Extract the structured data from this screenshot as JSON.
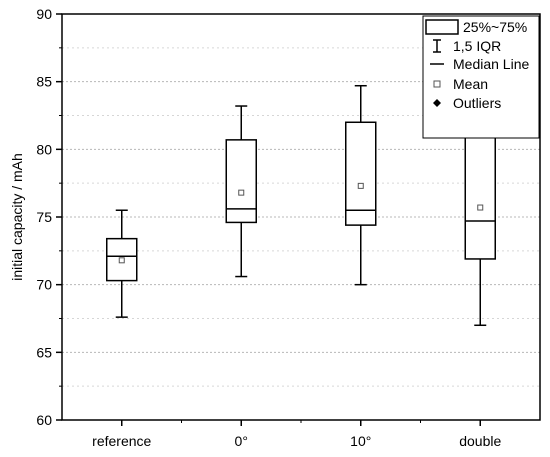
{
  "chart_data": {
    "type": "box",
    "ylabel": "initial capacity / mAh",
    "xlabel": "",
    "ylim": [
      60,
      90
    ],
    "yticks": [
      60,
      65,
      70,
      75,
      80,
      85,
      90
    ],
    "grid": true,
    "legend_position": "top-right",
    "categories": [
      "reference",
      "0°",
      "10°",
      "double"
    ],
    "boxes": [
      {
        "category": "reference",
        "whisker_low": 67.6,
        "q1": 70.3,
        "median": 72.1,
        "q3": 73.4,
        "whisker_high": 75.5,
        "mean": 71.8
      },
      {
        "category": "0°",
        "whisker_low": 70.6,
        "q1": 74.6,
        "median": 75.6,
        "q3": 80.7,
        "whisker_high": 83.2,
        "mean": 76.8
      },
      {
        "category": "10°",
        "whisker_low": 70.0,
        "q1": 74.4,
        "median": 75.5,
        "q3": 82.0,
        "whisker_high": 84.7,
        "mean": 77.3
      },
      {
        "category": "double",
        "whisker_low": 67.0,
        "q1": 71.9,
        "median": 74.7,
        "q3": 80.9,
        "whisker_high": 82.5,
        "mean": 75.7
      }
    ]
  },
  "legend": {
    "items": [
      {
        "symbol": "box",
        "label": "25%~75%"
      },
      {
        "symbol": "whisker",
        "label": "1,5 IQR"
      },
      {
        "symbol": "line",
        "label": "Median Line"
      },
      {
        "symbol": "open-square",
        "label": "Mean"
      },
      {
        "symbol": "filled-diamond",
        "label": "Outliers"
      }
    ]
  }
}
